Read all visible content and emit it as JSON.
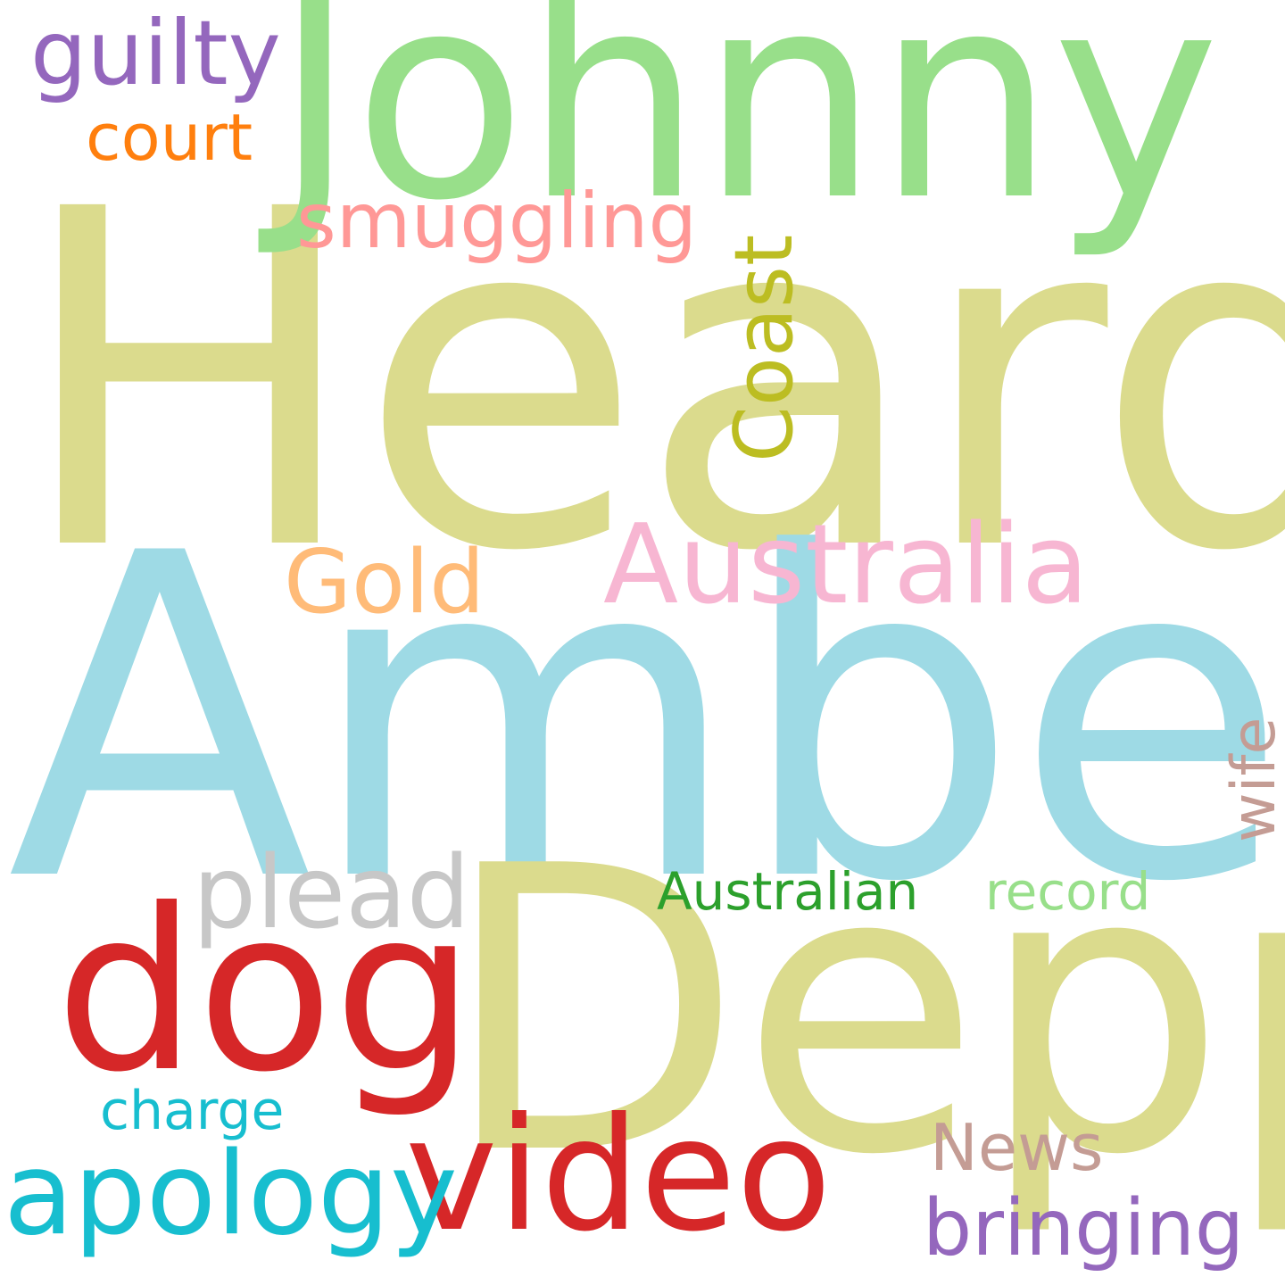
{
  "colors": {
    "background": "#ffffff",
    "heard": "#dbdb8d",
    "amber": "#9edae5",
    "johnny": "#98df8a",
    "depp": "#dbdb8d",
    "dog": "#d62728",
    "video": "#d62728",
    "apology": "#17becf",
    "australia": "#f7b6d2",
    "guilty": "#9467bd",
    "smuggling": "#ff9896",
    "gold": "#ffbb78",
    "plead": "#c7c7c7",
    "court": "#ff7f0e",
    "australian": "#2ca02c",
    "record": "#98df8a",
    "charge": "#17becf",
    "news": "#c49c94",
    "bringing": "#9467bd",
    "coast": "#bcbd22",
    "wife": "#c49c94"
  },
  "words": {
    "heard": "Heard",
    "amber": "Amber",
    "johnny": "Johnny",
    "depp": "Depp",
    "dog": "dog",
    "video": "video",
    "apology": "apology",
    "australia": "Australia",
    "guilty": "guilty",
    "smuggling": "smuggling",
    "gold": "Gold",
    "plead": "plead",
    "court": "court",
    "australian": "Australian",
    "record": "record",
    "charge": "charge",
    "news": "News",
    "bringing": "bringing",
    "coast": "Coast",
    "wife": "wife"
  }
}
